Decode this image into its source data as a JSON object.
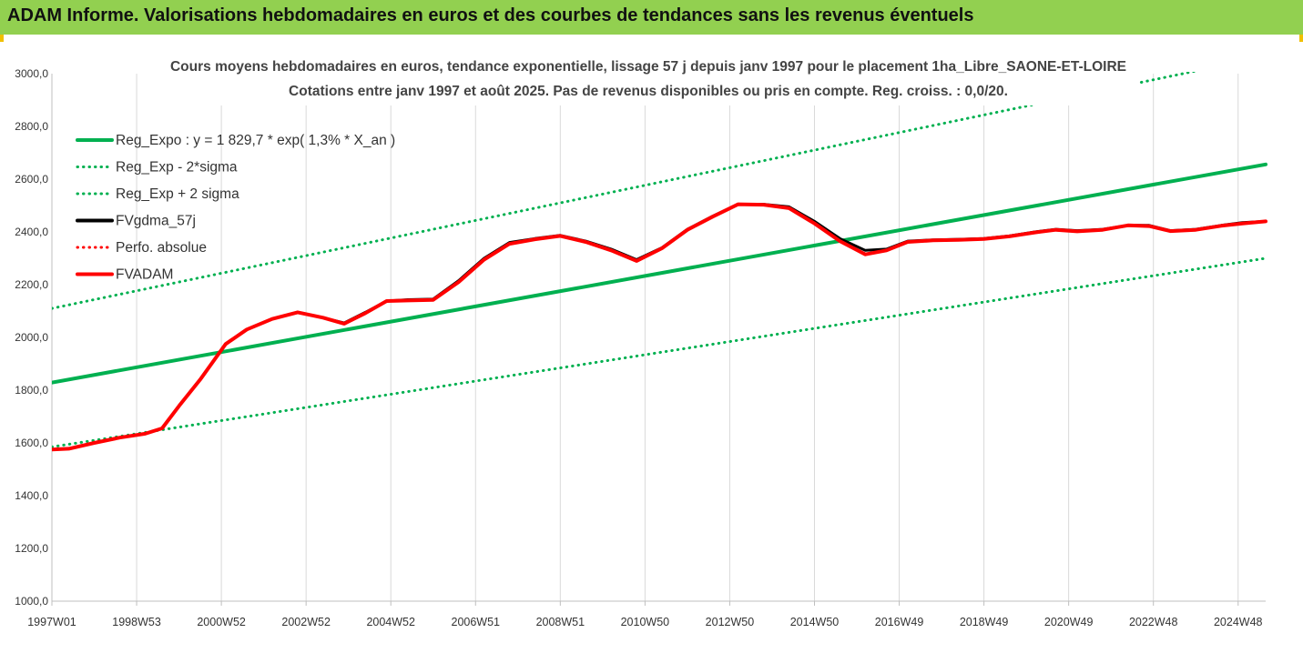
{
  "banner": {
    "title": "ADAM Informe. Valorisations hebdomadaires en euros et des courbes de tendances sans les revenus éventuels",
    "color": "#92d050"
  },
  "chart_data": {
    "type": "line",
    "title": "Cours moyens hebdomadaires en euros, tendance exponentielle, lissage 57 j depuis janv 1997  pour le placement 1ha_Libre_SAONE-ET-LOIRE",
    "subtitle": "Cotations entre janv 1997 et août 2025.  Pas de revenus disponibles ou pris en compte. Reg. croiss.  : 0,0/20.",
    "xlabel": "",
    "ylabel": "",
    "ylim": [
      1000,
      3000
    ],
    "xlim": [
      1997.0,
      2025.65
    ],
    "y_ticks": [
      "1000,0",
      "1200,0",
      "1400,0",
      "1600,0",
      "1800,0",
      "2000,0",
      "2200,0",
      "2400,0",
      "2600,0",
      "2800,0",
      "3000,0"
    ],
    "x_tick_labels": [
      "1997W01",
      "1998W53",
      "2000W52",
      "2002W52",
      "2004W52",
      "2006W51",
      "2008W51",
      "2010W50",
      "2012W50",
      "2014W50",
      "2016W49",
      "2018W49",
      "2020W49",
      "2022W48",
      "2024W48"
    ],
    "x_tick_years": [
      1997,
      1999,
      2001,
      2003,
      2005,
      2007,
      2009,
      2011,
      2013,
      2015,
      2017,
      2019,
      2021,
      2023,
      2025
    ],
    "grid": "vertical",
    "legend_position": "top-left",
    "series": [
      {
        "name": "Reg_Expo : y = 1 829,7 * exp( 1,3% *  X_an )",
        "color": "#00b050",
        "style": "solid",
        "x": [
          1997.0,
          2025.65
        ],
        "y": [
          1829,
          2656
        ]
      },
      {
        "name": "Reg_Exp - 2*sigma",
        "color": "#00b050",
        "style": "dotted",
        "x": [
          1997.0,
          2025.65
        ],
        "y": [
          1585,
          2300
        ]
      },
      {
        "name": "Reg_Exp + 2 sigma",
        "color": "#00b050",
        "style": "dotted",
        "x": [
          1997.0,
          2025.65
        ],
        "y": [
          2110,
          3065
        ]
      },
      {
        "name": "FVgdma_57j",
        "color": "#000000",
        "style": "solid",
        "x": [
          1997.0,
          1997.4,
          1998.0,
          1998.6,
          1999.2,
          1999.6,
          2000.0,
          2000.5,
          2001.1,
          2001.6,
          2002.2,
          2002.8,
          2003.4,
          2003.9,
          2004.4,
          2004.9,
          2005.4,
          2006.0,
          2006.6,
          2007.2,
          2007.8,
          2008.4,
          2009.0,
          2009.6,
          2010.2,
          2010.8,
          2011.4,
          2012.0,
          2012.6,
          2013.2,
          2013.8,
          2014.4,
          2015.0,
          2015.6,
          2016.2,
          2016.7,
          2017.2,
          2017.8,
          2018.4,
          2019.0,
          2019.6,
          2020.2,
          2020.7,
          2021.2,
          2021.8,
          2022.4,
          2022.9,
          2023.4,
          2024.0,
          2024.6,
          2025.1,
          2025.65
        ],
        "y": [
          1575,
          1578,
          1600,
          1620,
          1635,
          1655,
          1740,
          1840,
          1975,
          2030,
          2070,
          2095,
          2075,
          2055,
          2095,
          2138,
          2143,
          2145,
          2215,
          2300,
          2360,
          2375,
          2387,
          2365,
          2335,
          2295,
          2340,
          2410,
          2460,
          2505,
          2505,
          2495,
          2440,
          2375,
          2330,
          2335,
          2365,
          2370,
          2372,
          2375,
          2385,
          2400,
          2410,
          2405,
          2410,
          2425,
          2425,
          2405,
          2410,
          2425,
          2435,
          2440
        ]
      },
      {
        "name": "Perfo. absolue",
        "color": "#ff0000",
        "style": "dotted",
        "x": [],
        "y": []
      },
      {
        "name": "FVADAM",
        "color": "#ff0000",
        "style": "solid",
        "x": [
          1997.0,
          1997.4,
          1998.0,
          1998.6,
          1999.2,
          1999.6,
          2000.0,
          2000.5,
          2001.1,
          2001.6,
          2002.2,
          2002.8,
          2003.4,
          2003.9,
          2004.4,
          2004.9,
          2005.4,
          2006.0,
          2006.6,
          2007.2,
          2007.8,
          2008.4,
          2009.0,
          2009.6,
          2010.2,
          2010.8,
          2011.4,
          2012.0,
          2012.6,
          2013.2,
          2013.8,
          2014.4,
          2015.0,
          2015.6,
          2016.2,
          2016.7,
          2017.2,
          2017.8,
          2018.4,
          2019.0,
          2019.6,
          2020.2,
          2020.7,
          2021.2,
          2021.8,
          2022.4,
          2022.9,
          2023.4,
          2024.0,
          2024.6,
          2025.1,
          2025.65
        ],
        "y": [
          1575,
          1578,
          1600,
          1620,
          1635,
          1655,
          1740,
          1840,
          1975,
          2030,
          2070,
          2095,
          2075,
          2052,
          2092,
          2138,
          2140,
          2142,
          2210,
          2295,
          2355,
          2372,
          2385,
          2362,
          2330,
          2290,
          2338,
          2408,
          2458,
          2505,
          2503,
          2490,
          2432,
          2365,
          2315,
          2330,
          2362,
          2368,
          2370,
          2373,
          2383,
          2398,
          2408,
          2402,
          2408,
          2425,
          2422,
          2403,
          2408,
          2423,
          2432,
          2440
        ]
      }
    ]
  }
}
